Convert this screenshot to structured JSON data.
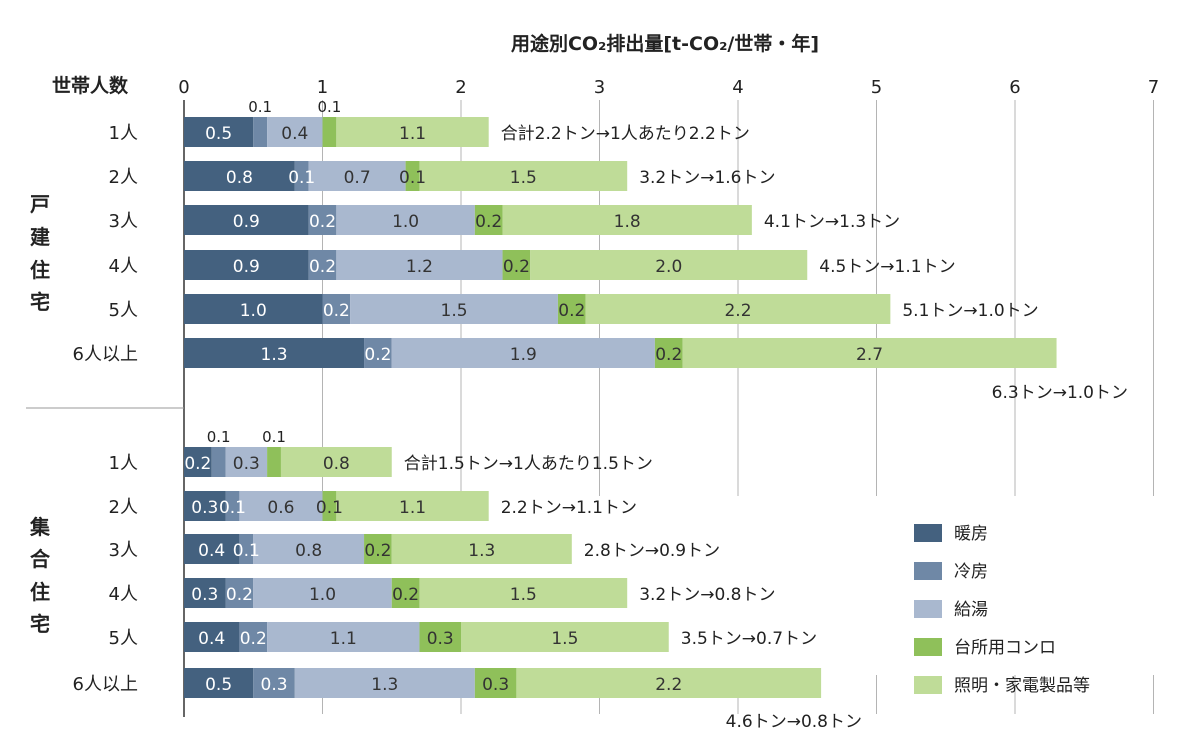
{
  "chart_data": {
    "type": "bar",
    "orientation": "horizontal",
    "stacked": true,
    "title": "用途別CO₂排出量[t-CO₂/世帯・年]",
    "y_header": "世帯人数",
    "xlim": [
      0,
      7
    ],
    "x_ticks": [
      "0",
      "1",
      "2",
      "3",
      "4",
      "5",
      "6",
      "7"
    ],
    "grid": true,
    "legend_position": "bottom-right",
    "series": [
      {
        "name": "暖房",
        "color": "#44617f"
      },
      {
        "name": "冷房",
        "color": "#6f88a6"
      },
      {
        "name": "給湯",
        "color": "#a9b8cf"
      },
      {
        "name": "台所用コンロ",
        "color": "#8fc05a"
      },
      {
        "name": "照明・家電製品等",
        "color": "#bfdc98"
      }
    ],
    "groups": [
      {
        "name": "戸建住宅",
        "rows": [
          {
            "label": "1人",
            "values": [
              0.5,
              0.1,
              0.4,
              0.1,
              1.1
            ],
            "value_labels": [
              "0.5",
              "0.1",
              "0.4",
              "0.1",
              "1.1"
            ],
            "total_label": "合計2.2トン→1人あたり2.2トン"
          },
          {
            "label": "2人",
            "values": [
              0.8,
              0.1,
              0.7,
              0.1,
              1.5
            ],
            "value_labels": [
              "0.8",
              "0.1",
              "0.7",
              "0.1",
              "1.5"
            ],
            "total_label": "3.2トン→1.6トン"
          },
          {
            "label": "3人",
            "values": [
              0.9,
              0.2,
              1.0,
              0.2,
              1.8
            ],
            "value_labels": [
              "0.9",
              "0.2",
              "1.0",
              "0.2",
              "1.8"
            ],
            "total_label": "4.1トン→1.3トン"
          },
          {
            "label": "4人",
            "values": [
              0.9,
              0.2,
              1.2,
              0.2,
              2.0
            ],
            "value_labels": [
              "0.9",
              "0.2",
              "1.2",
              "0.2",
              "2.0"
            ],
            "total_label": "4.5トン→1.1トン"
          },
          {
            "label": "5人",
            "values": [
              1.0,
              0.2,
              1.5,
              0.2,
              2.2
            ],
            "value_labels": [
              "1.0",
              "0.2",
              "1.5",
              "0.2",
              "2.2"
            ],
            "total_label": "5.1トン→1.0トン"
          },
          {
            "label": "6人以上",
            "values": [
              1.3,
              0.2,
              1.9,
              0.2,
              2.7
            ],
            "value_labels": [
              "1.3",
              "0.2",
              "1.9",
              "0.2",
              "2.7"
            ],
            "total_label": "6.3トン→1.0トン"
          }
        ]
      },
      {
        "name": "集合住宅",
        "rows": [
          {
            "label": "1人",
            "values": [
              0.2,
              0.1,
              0.3,
              0.1,
              0.8
            ],
            "value_labels": [
              "0.2",
              "0.1",
              "0.3",
              "0.1",
              "0.8"
            ],
            "total_label": "合計1.5トン→1人あたり1.5トン"
          },
          {
            "label": "2人",
            "values": [
              0.3,
              0.1,
              0.6,
              0.1,
              1.1
            ],
            "value_labels": [
              "0.3",
              "0.1",
              "0.6",
              "0.1",
              "1.1"
            ],
            "total_label": "2.2トン→1.1トン"
          },
          {
            "label": "3人",
            "values": [
              0.4,
              0.1,
              0.8,
              0.2,
              1.3
            ],
            "value_labels": [
              "0.4",
              "0.1",
              "0.8",
              "0.2",
              "1.3"
            ],
            "total_label": "2.8トン→0.9トン"
          },
          {
            "label": "4人",
            "values": [
              0.3,
              0.2,
              1.0,
              0.2,
              1.5
            ],
            "value_labels": [
              "0.3",
              "0.2",
              "1.0",
              "0.2",
              "1.5"
            ],
            "total_label": "3.2トン→0.8トン"
          },
          {
            "label": "5人",
            "values": [
              0.4,
              0.2,
              1.1,
              0.3,
              1.5
            ],
            "value_labels": [
              "0.4",
              "0.2",
              "1.1",
              "0.3",
              "1.5"
            ],
            "total_label": "3.5トン→0.7トン"
          },
          {
            "label": "6人以上",
            "values": [
              0.5,
              0.3,
              1.3,
              0.3,
              2.2
            ],
            "value_labels": [
              "0.5",
              "0.3",
              "1.3",
              "0.3",
              "2.2"
            ],
            "total_label": "4.6トン→0.8トン"
          }
        ]
      }
    ]
  }
}
